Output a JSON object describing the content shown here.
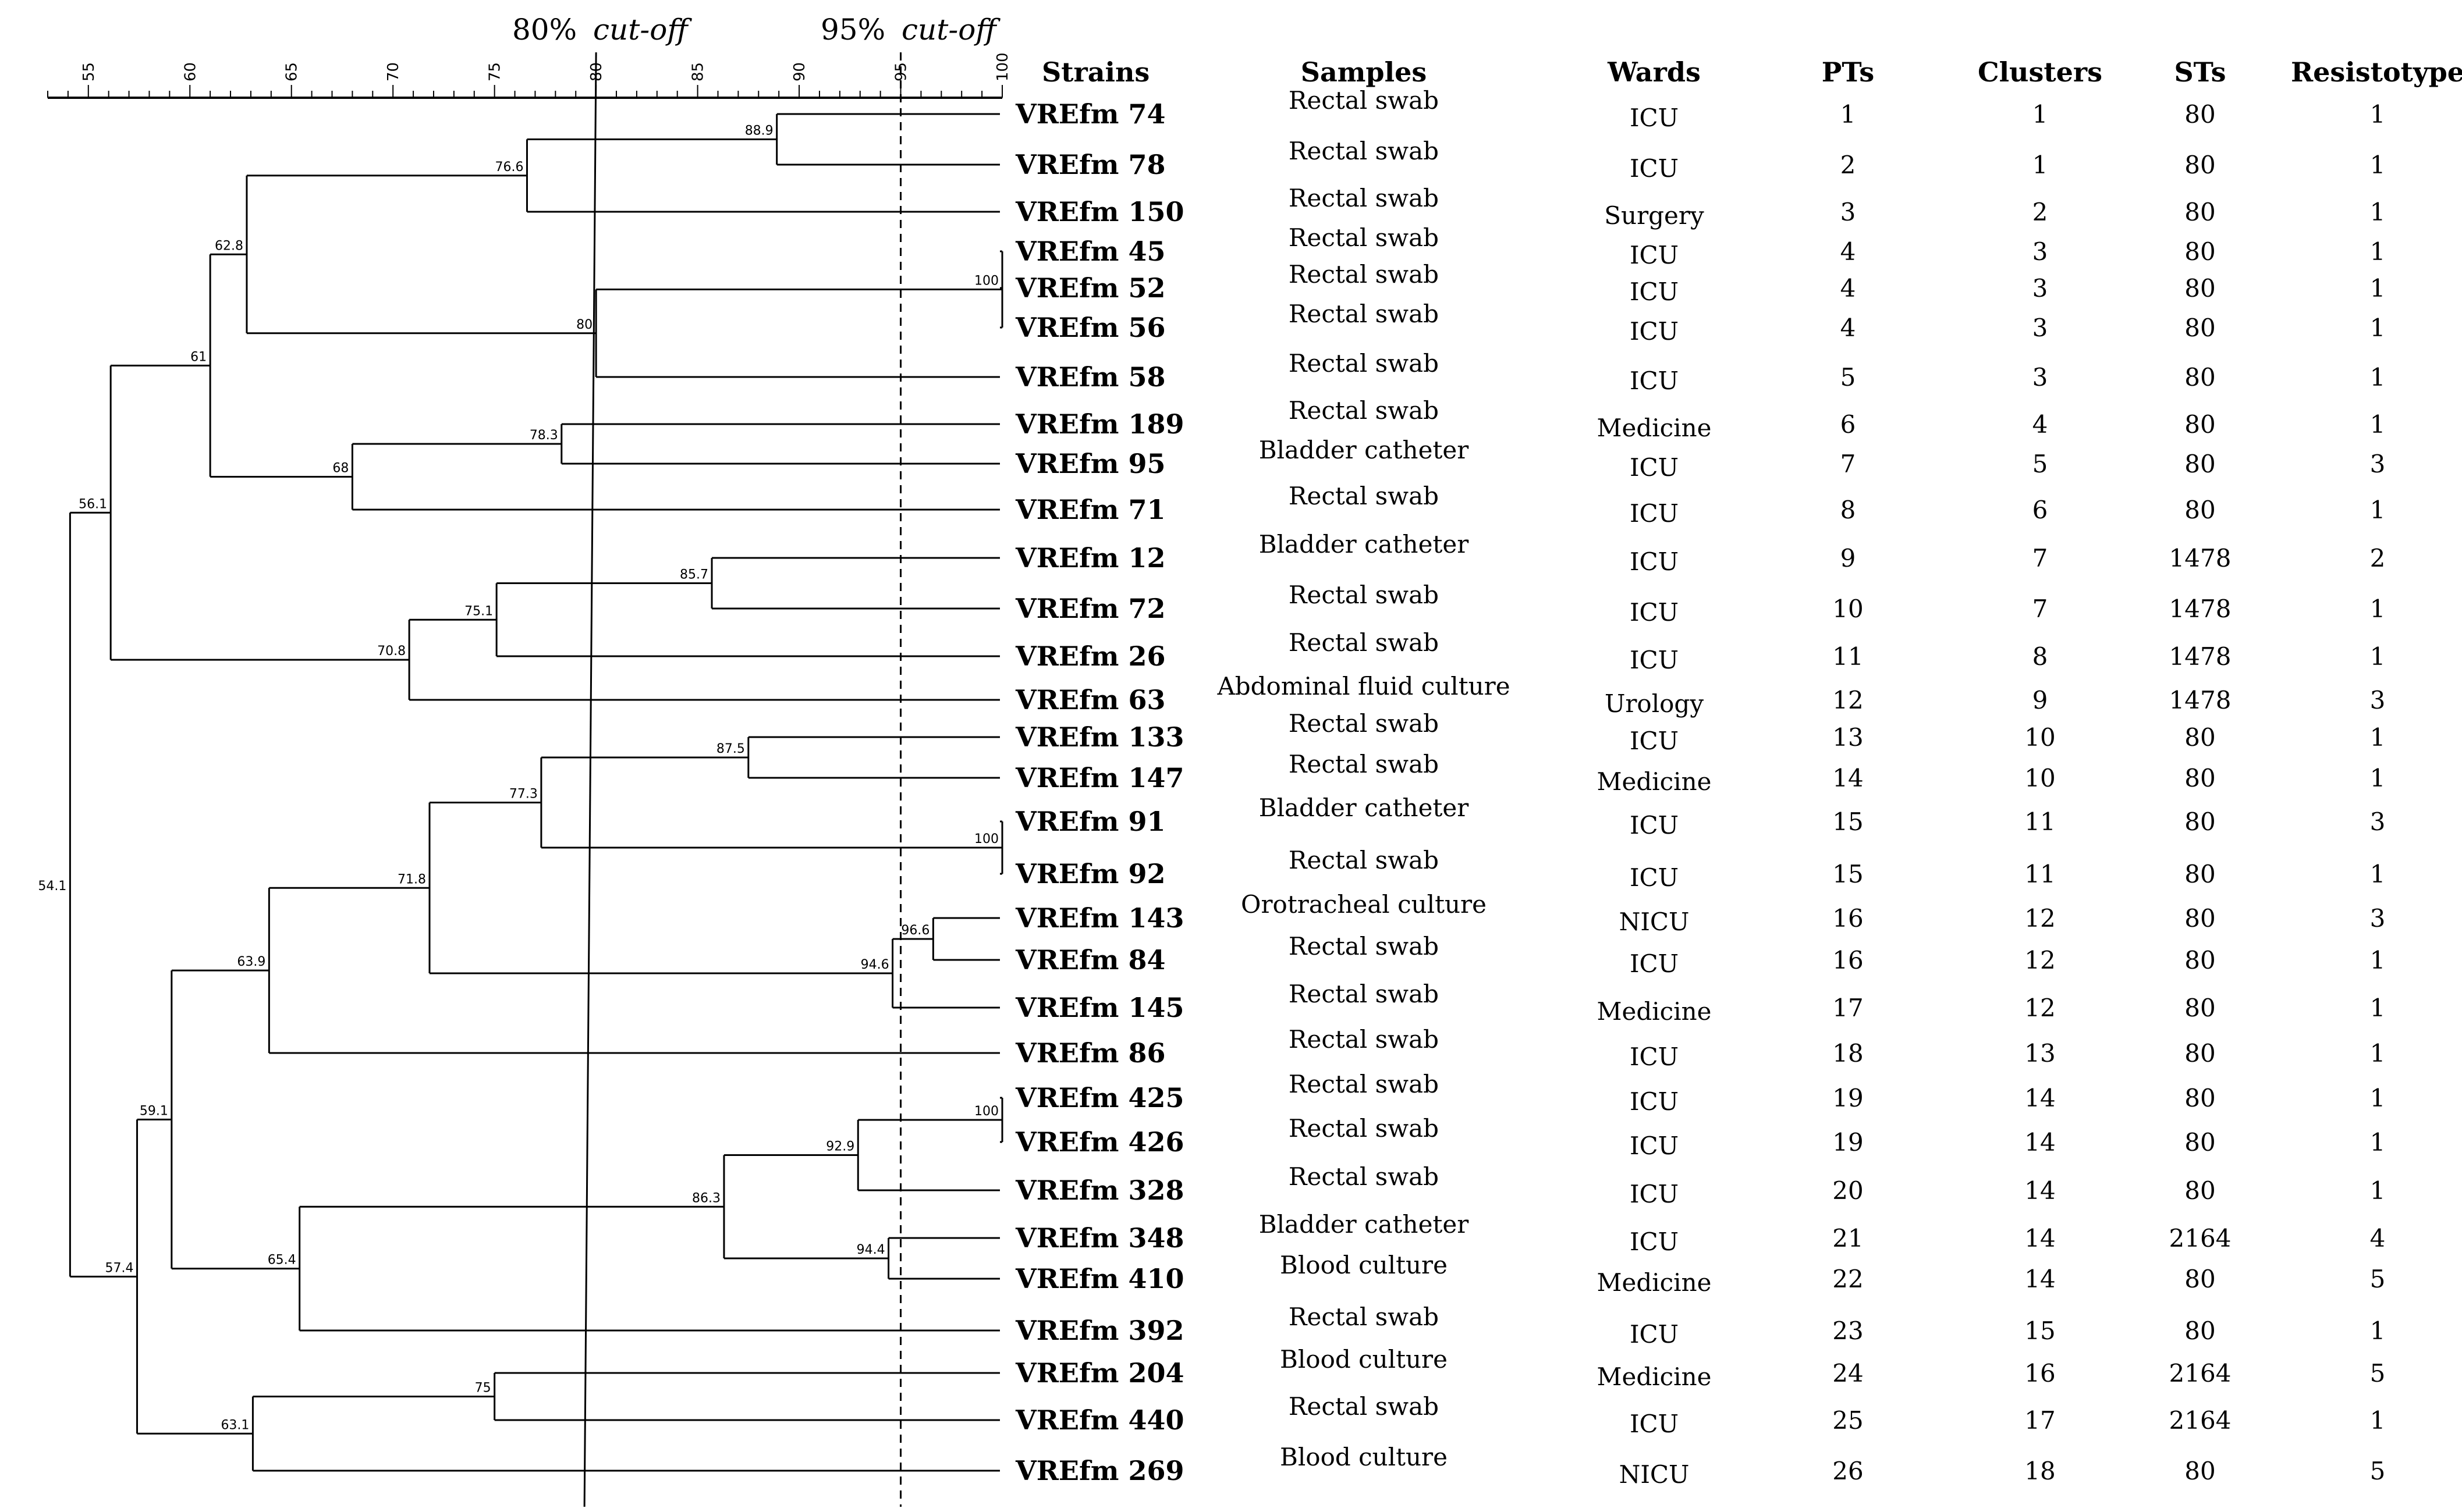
{
  "cutoffs": [
    {
      "value": 80,
      "percent": "80%",
      "label": "cut-off"
    },
    {
      "value": 95,
      "percent": "95%",
      "label": "cut-off"
    }
  ],
  "axis": {
    "min": 53,
    "max": 100,
    "ticks": [
      55,
      60,
      65,
      70,
      75,
      80,
      85,
      90,
      95,
      100
    ]
  },
  "headers": {
    "strains": "Strains",
    "samples": "Samples",
    "wards": "Wards",
    "pts": "PTs",
    "clusters": "Clusters",
    "sts": "STs",
    "resistotype": "Resistotype"
  },
  "rows": [
    {
      "strain": "VREfm 74",
      "sample": "Rectal swab",
      "ward": "ICU",
      "pt": "1",
      "cluster": "1",
      "st": "80",
      "resistotype": "1"
    },
    {
      "strain": "VREfm 78",
      "sample": "Rectal swab",
      "ward": "ICU",
      "pt": "2",
      "cluster": "1",
      "st": "80",
      "resistotype": "1"
    },
    {
      "strain": "VREfm 150",
      "sample": "Rectal swab",
      "ward": "Surgery",
      "pt": "3",
      "cluster": "2",
      "st": "80",
      "resistotype": "1"
    },
    {
      "strain": "VREfm 45",
      "sample": "Rectal swab",
      "ward": "ICU",
      "pt": "4",
      "cluster": "3",
      "st": "80",
      "resistotype": "1"
    },
    {
      "strain": "VREfm 52",
      "sample": "Rectal swab",
      "ward": "ICU",
      "pt": "4",
      "cluster": "3",
      "st": "80",
      "resistotype": "1"
    },
    {
      "strain": "VREfm 56",
      "sample": "Rectal swab",
      "ward": "ICU",
      "pt": "4",
      "cluster": "3",
      "st": "80",
      "resistotype": "1"
    },
    {
      "strain": "VREfm 58",
      "sample": "Rectal swab",
      "ward": "ICU",
      "pt": "5",
      "cluster": "3",
      "st": "80",
      "resistotype": "1"
    },
    {
      "strain": "VREfm 189",
      "sample": "Rectal swab",
      "ward": "Medicine",
      "pt": "6",
      "cluster": "4",
      "st": "80",
      "resistotype": "1"
    },
    {
      "strain": "VREfm 95",
      "sample": "Bladder catheter",
      "ward": "ICU",
      "pt": "7",
      "cluster": "5",
      "st": "80",
      "resistotype": "3"
    },
    {
      "strain": "VREfm 71",
      "sample": "Rectal swab",
      "ward": "ICU",
      "pt": "8",
      "cluster": "6",
      "st": "80",
      "resistotype": "1"
    },
    {
      "strain": "VREfm 12",
      "sample": "Bladder catheter",
      "ward": "ICU",
      "pt": "9",
      "cluster": "7",
      "st": "1478",
      "resistotype": "2"
    },
    {
      "strain": "VREfm 72",
      "sample": "Rectal swab",
      "ward": "ICU",
      "pt": "10",
      "cluster": "7",
      "st": "1478",
      "resistotype": "1"
    },
    {
      "strain": "VREfm 26",
      "sample": "Rectal swab",
      "ward": "ICU",
      "pt": "11",
      "cluster": "8",
      "st": "1478",
      "resistotype": "1"
    },
    {
      "strain": "VREfm 63",
      "sample": "Abdominal fluid culture",
      "ward": "Urology",
      "pt": "12",
      "cluster": "9",
      "st": "1478",
      "resistotype": "3"
    },
    {
      "strain": "VREfm 133",
      "sample": "Rectal swab",
      "ward": "ICU",
      "pt": "13",
      "cluster": "10",
      "st": "80",
      "resistotype": "1"
    },
    {
      "strain": "VREfm 147",
      "sample": "Rectal swab",
      "ward": "Medicine",
      "pt": "14",
      "cluster": "10",
      "st": "80",
      "resistotype": "1"
    },
    {
      "strain": "VREfm 91",
      "sample": "Bladder catheter",
      "ward": "ICU",
      "pt": "15",
      "cluster": "11",
      "st": "80",
      "resistotype": "3"
    },
    {
      "strain": "VREfm 92",
      "sample": "Rectal swab",
      "ward": "ICU",
      "pt": "15",
      "cluster": "11",
      "st": "80",
      "resistotype": "1"
    },
    {
      "strain": "VREfm 143",
      "sample": "Orotracheal culture",
      "ward": "NICU",
      "pt": "16",
      "cluster": "12",
      "st": "80",
      "resistotype": "3"
    },
    {
      "strain": "VREfm 84",
      "sample": "Rectal swab",
      "ward": "ICU",
      "pt": "16",
      "cluster": "12",
      "st": "80",
      "resistotype": "1"
    },
    {
      "strain": "VREfm 145",
      "sample": "Rectal swab",
      "ward": "Medicine",
      "pt": "17",
      "cluster": "12",
      "st": "80",
      "resistotype": "1"
    },
    {
      "strain": "VREfm 86",
      "sample": "Rectal swab",
      "ward": "ICU",
      "pt": "18",
      "cluster": "13",
      "st": "80",
      "resistotype": "1"
    },
    {
      "strain": "VREfm 425",
      "sample": "Rectal swab",
      "ward": "ICU",
      "pt": "19",
      "cluster": "14",
      "st": "80",
      "resistotype": "1"
    },
    {
      "strain": "VREfm 426",
      "sample": "Rectal swab",
      "ward": "ICU",
      "pt": "19",
      "cluster": "14",
      "st": "80",
      "resistotype": "1"
    },
    {
      "strain": "VREfm 328",
      "sample": "Rectal swab",
      "ward": "ICU",
      "pt": "20",
      "cluster": "14",
      "st": "80",
      "resistotype": "1"
    },
    {
      "strain": "VREfm 348",
      "sample": "Bladder catheter",
      "ward": "ICU",
      "pt": "21",
      "cluster": "14",
      "st": "2164",
      "resistotype": "4"
    },
    {
      "strain": "VREfm 410",
      "sample": "Blood culture",
      "ward": "Medicine",
      "pt": "22",
      "cluster": "14",
      "st": "80",
      "resistotype": "5"
    },
    {
      "strain": "VREfm 392",
      "sample": "Rectal swab",
      "ward": "ICU",
      "pt": "23",
      "cluster": "15",
      "st": "80",
      "resistotype": "1"
    },
    {
      "strain": "VREfm 204",
      "sample": "Blood culture",
      "ward": "Medicine",
      "pt": "24",
      "cluster": "16",
      "st": "2164",
      "resistotype": "5"
    },
    {
      "strain": "VREfm 440",
      "sample": "Rectal swab",
      "ward": "ICU",
      "pt": "25",
      "cluster": "17",
      "st": "2164",
      "resistotype": "1"
    },
    {
      "strain": "VREfm 269",
      "sample": "Blood culture",
      "ward": "NICU",
      "pt": "26",
      "cluster": "18",
      "st": "80",
      "resistotype": "5"
    }
  ],
  "dendrogram": {
    "root": {
      "label": "54.1",
      "value": 54.1,
      "children": [
        {
          "label": "56.1",
          "value": 56.1,
          "children": [
            {
              "label": "61",
              "value": 61,
              "children": [
                {
                  "label": "62.8",
                  "value": 62.8,
                  "children": [
                    {
                      "label": "76.6",
                      "value": 76.6,
                      "children": [
                        {
                          "label": "88.9",
                          "value": 88.9,
                          "children": [
                            {
                              "leaf": 0
                            },
                            {
                              "leaf": 1
                            }
                          ]
                        },
                        {
                          "leaf": 2
                        }
                      ]
                    },
                    {
                      "label": "80",
                      "value": 80,
                      "children": [
                        {
                          "label": "100",
                          "value": 100,
                          "children": [
                            {
                              "leaf": 3
                            },
                            {
                              "leaf": 4
                            },
                            {
                              "leaf": 5
                            }
                          ]
                        },
                        {
                          "leaf": 6
                        }
                      ]
                    }
                  ]
                },
                {
                  "label": "68",
                  "value": 68,
                  "children": [
                    {
                      "label": "78.3",
                      "value": 78.3,
                      "children": [
                        {
                          "leaf": 7
                        },
                        {
                          "leaf": 8
                        }
                      ]
                    },
                    {
                      "leaf": 9
                    }
                  ]
                }
              ]
            },
            {
              "label": "70.8",
              "value": 70.8,
              "children": [
                {
                  "label": "75.1",
                  "value": 75.1,
                  "children": [
                    {
                      "label": "85.7",
                      "value": 85.7,
                      "children": [
                        {
                          "leaf": 10
                        },
                        {
                          "leaf": 11
                        }
                      ]
                    },
                    {
                      "leaf": 12
                    }
                  ]
                },
                {
                  "leaf": 13
                }
              ]
            }
          ]
        },
        {
          "label": "57.4",
          "value": 57.4,
          "children": [
            {
              "label": "59.1",
              "value": 59.1,
              "children": [
                {
                  "label": "63.9",
                  "value": 63.9,
                  "children": [
                    {
                      "label": "71.8",
                      "value": 71.8,
                      "children": [
                        {
                          "label": "77.3",
                          "value": 77.3,
                          "children": [
                            {
                              "label": "87.5",
                              "value": 87.5,
                              "children": [
                                {
                                  "leaf": 14
                                },
                                {
                                  "leaf": 15
                                }
                              ]
                            },
                            {
                              "label": "100",
                              "value": 100,
                              "children": [
                                {
                                  "leaf": 16
                                },
                                {
                                  "leaf": 17
                                }
                              ]
                            }
                          ]
                        },
                        {
                          "label": "94.6",
                          "value": 94.6,
                          "children": [
                            {
                              "label": "96.6",
                              "value": 96.6,
                              "children": [
                                {
                                  "leaf": 18
                                },
                                {
                                  "leaf": 19
                                }
                              ]
                            },
                            {
                              "leaf": 20
                            }
                          ]
                        }
                      ]
                    },
                    {
                      "leaf": 21
                    }
                  ]
                },
                {
                  "label": "65.4",
                  "value": 65.4,
                  "children": [
                    {
                      "label": "86.3",
                      "value": 86.3,
                      "children": [
                        {
                          "label": "92.9",
                          "value": 92.9,
                          "children": [
                            {
                              "label": "100",
                              "value": 100,
                              "children": [
                                {
                                  "leaf": 22
                                },
                                {
                                  "leaf": 23
                                }
                              ]
                            },
                            {
                              "leaf": 24
                            }
                          ]
                        },
                        {
                          "label": "94.4",
                          "value": 94.4,
                          "children": [
                            {
                              "leaf": 25
                            },
                            {
                              "leaf": 26
                            }
                          ]
                        }
                      ]
                    },
                    {
                      "leaf": 27
                    }
                  ]
                }
              ]
            },
            {
              "label": "63.1",
              "value": 63.1,
              "children": [
                {
                  "label": "75",
                  "value": 75,
                  "children": [
                    {
                      "leaf": 28
                    },
                    {
                      "leaf": 29
                    }
                  ]
                },
                {
                  "leaf": 30
                }
              ]
            }
          ]
        }
      ]
    }
  }
}
